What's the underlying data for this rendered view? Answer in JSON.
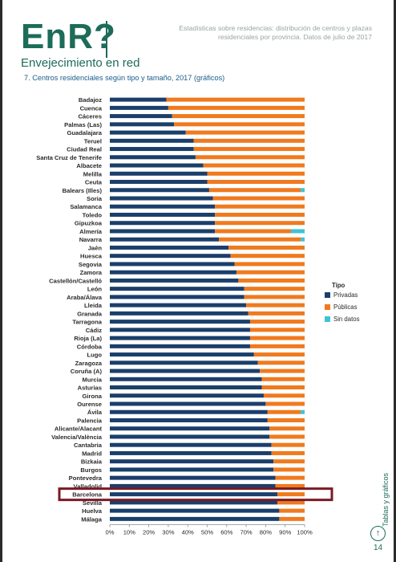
{
  "brand": {
    "logo": "EnR?",
    "subtitle": "Envejecimiento en red"
  },
  "header": {
    "note": "Estadísticas sobre residencias: distribución de centros y plazas residenciales por provincia. Datos de julio de 2017"
  },
  "section": {
    "title": "7. Centros residenciales según tipo y tamaño, 2017 (gráficos)"
  },
  "side": {
    "label": "Tablas y gráficos",
    "arrow": "↑",
    "page": "14"
  },
  "chart_data": {
    "type": "bar",
    "orientation": "horizontal",
    "stacked": true,
    "percent": true,
    "legend_title": "Tipo",
    "legend_position": "right",
    "categories": [
      "Badajoz",
      "Cuenca",
      "Cáceres",
      "Palmas (Las)",
      "Guadalajara",
      "Teruel",
      "Ciudad Real",
      "Santa Cruz de Tenerife",
      "Albacete",
      "Melilla",
      "Ceuta",
      "Balears (Illes)",
      "Soria",
      "Salamanca",
      "Toledo",
      "Gipuzkoa",
      "Almería",
      "Navarra",
      "Jaén",
      "Huesca",
      "Segovia",
      "Zamora",
      "Castellón/Castelló",
      "León",
      "Araba/Álava",
      "Lleida",
      "Granada",
      "Tarragona",
      "Cádiz",
      "Rioja (La)",
      "Córdoba",
      "Lugo",
      "Zaragoza",
      "Coruña (A)",
      "Murcia",
      "Asturias",
      "Girona",
      "Ourense",
      "Ávila",
      "Palencia",
      "Alicante/Alacant",
      "Valencia/València",
      "Cantabria",
      "Madrid",
      "Bizkaia",
      "Burgos",
      "Pontevedra",
      "Valladolid",
      "Barcelona",
      "Sevilla",
      "Huelva",
      "Málaga"
    ],
    "series": [
      {
        "name": "Privadas",
        "color": "#1b3f6b",
        "values": [
          29,
          30,
          32,
          33,
          39,
          43,
          43,
          44,
          48,
          50,
          50,
          51,
          53,
          54,
          54,
          54,
          54,
          56,
          61,
          62,
          64,
          65,
          66,
          69,
          69,
          70,
          71,
          72,
          72,
          72,
          72,
          74,
          76,
          77,
          78,
          78,
          79,
          80,
          81,
          81,
          82,
          82,
          83,
          83,
          84,
          84,
          85,
          85,
          86,
          86,
          87,
          87
        ]
      },
      {
        "name": "Públicas",
        "color": "#f07a1e",
        "values": [
          71,
          70,
          68,
          67,
          61,
          57,
          57,
          56,
          52,
          50,
          50,
          47,
          47,
          46,
          46,
          46,
          39,
          42,
          39,
          38,
          36,
          35,
          34,
          31,
          31,
          30,
          29,
          28,
          28,
          28,
          28,
          26,
          24,
          23,
          22,
          22,
          21,
          20,
          17,
          19,
          18,
          18,
          17,
          17,
          16,
          16,
          15,
          15,
          14,
          14,
          13,
          13
        ]
      },
      {
        "name": "Sin datos",
        "color": "#3ec3d4",
        "values": [
          0,
          0,
          0,
          0,
          0,
          0,
          0,
          0,
          0,
          0,
          0,
          2,
          0,
          0,
          0,
          0,
          7,
          2,
          0,
          0,
          0,
          0,
          0,
          0,
          0,
          0,
          0,
          0,
          0,
          0,
          0,
          0,
          0,
          0,
          0,
          0,
          0,
          0,
          2,
          0,
          0,
          0,
          0,
          0,
          0,
          0,
          0,
          0,
          0,
          0,
          0,
          0
        ]
      }
    ],
    "xlim": [
      0,
      100
    ],
    "xticks": [
      "0%",
      "10%",
      "20%",
      "30%",
      "40%",
      "50%",
      "60%",
      "70%",
      "80%",
      "90%",
      "100%"
    ],
    "highlight_category": "Barcelona",
    "highlight_color": "#7a1a24",
    "grid": false
  }
}
